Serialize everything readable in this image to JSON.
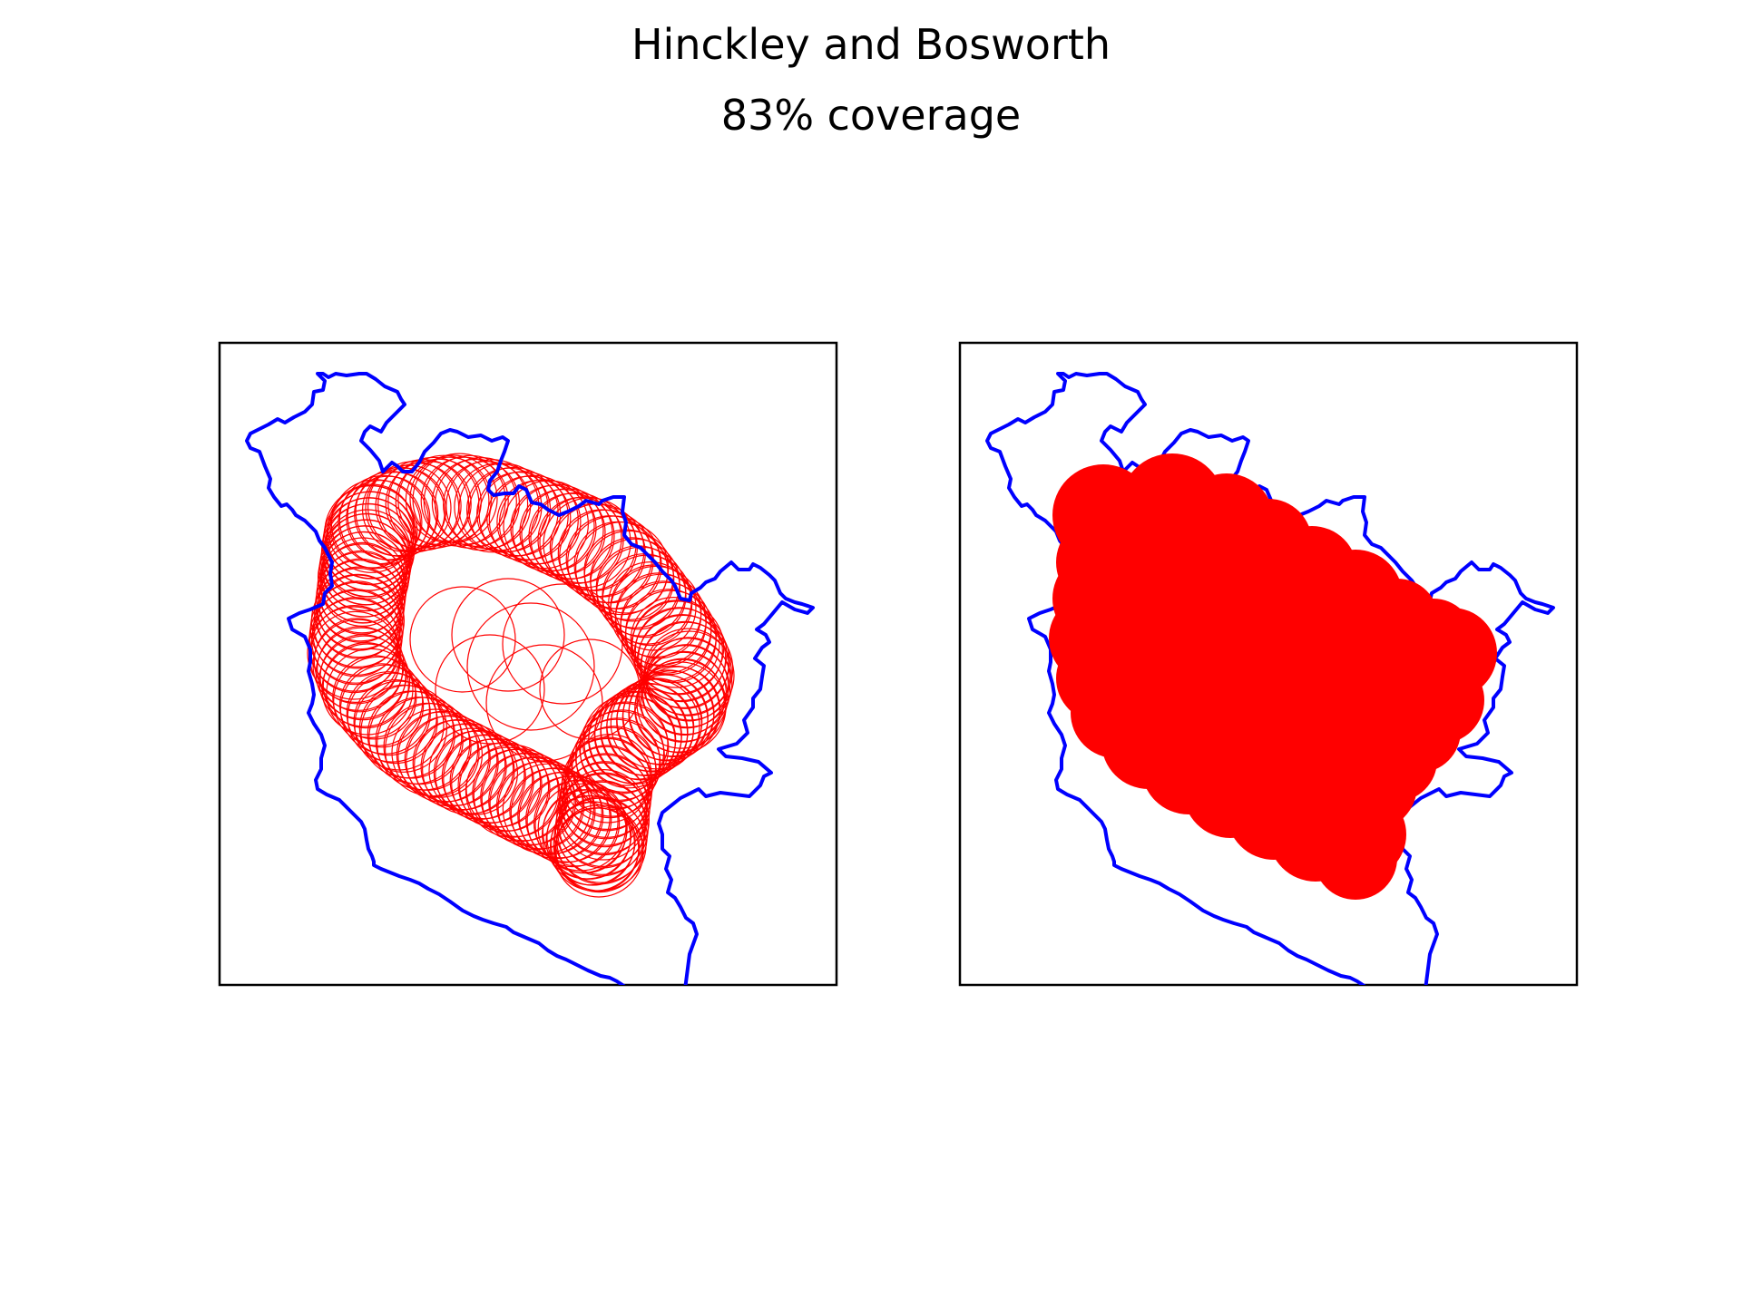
{
  "figure": {
    "title": "Hinckley and Bosworth",
    "subtitle": "83% coverage"
  },
  "colors": {
    "boundary": "#0000ff",
    "coverage": "#ff0000",
    "frame": "#000000",
    "background": "#ffffff"
  },
  "chart_data": [
    {
      "type": "map",
      "panel": "left",
      "style": "outlined circles",
      "title": "",
      "xlabel": "",
      "ylabel": "",
      "ticks": "none"
    },
    {
      "type": "map",
      "panel": "right",
      "style": "filled coverage union",
      "title": "",
      "xlabel": "",
      "ylabel": "",
      "ticks": "none"
    }
  ]
}
